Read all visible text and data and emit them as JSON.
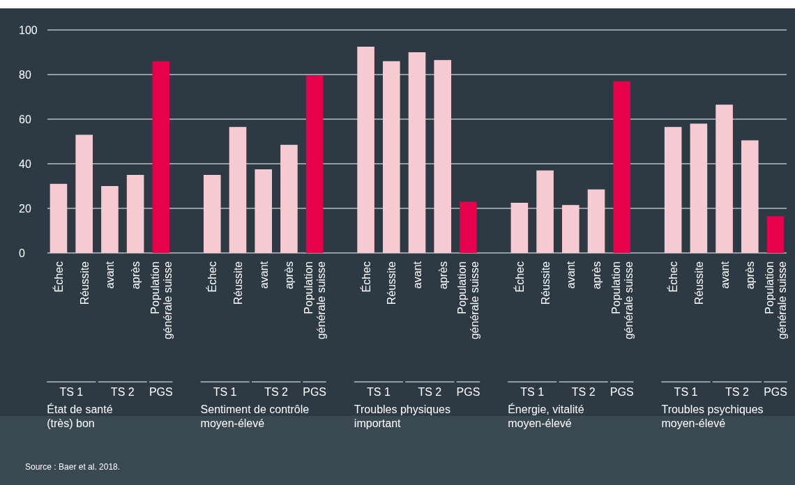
{
  "chart_data": {
    "type": "bar",
    "categories": [
      "Échec",
      "Réussite",
      "avant",
      "après",
      "Population\ngénérale suisse",
      null,
      "Échec",
      "Réussite",
      "avant",
      "après",
      "Population\ngénérale suisse",
      null,
      "Échec",
      "Réussite",
      "avant",
      "après",
      "Population\ngénérale suisse",
      null,
      "Échec",
      "Réussite",
      "avant",
      "après",
      "Population\ngénérale suisse",
      null,
      "Échec",
      "Réussite",
      "avant",
      "après",
      "Population\ngénérale suisse"
    ],
    "values": [
      31,
      53,
      30,
      35,
      86,
      null,
      35,
      56.5,
      37.5,
      48.5,
      79.5,
      null,
      92.5,
      86,
      90,
      86.5,
      23,
      null,
      22.5,
      37,
      21.5,
      28.5,
      77,
      null,
      56.5,
      58,
      66.5,
      50.5,
      16.5
    ],
    "colors": [
      "#f5cbd1",
      "#f5cbd1",
      "#f5cbd1",
      "#f5cbd1",
      "#e6004c",
      null,
      "#f5cbd1",
      "#f5cbd1",
      "#f5cbd1",
      "#f5cbd1",
      "#e6004c",
      null,
      "#f5cbd1",
      "#f5cbd1",
      "#f5cbd1",
      "#f5cbd1",
      "#e6004c",
      null,
      "#f5cbd1",
      "#f5cbd1",
      "#f5cbd1",
      "#f5cbd1",
      "#e6004c",
      null,
      "#f5cbd1",
      "#f5cbd1",
      "#f5cbd1",
      "#f5cbd1",
      "#e6004c"
    ],
    "ylim": [
      0,
      100
    ],
    "yticks": [
      0,
      20,
      40,
      60,
      80,
      100
    ],
    "grid": "y",
    "annotations": [
      "TS 1",
      "TS 2",
      "PGS",
      "État de santé\n(très) bon",
      "TS 1",
      "TS 2",
      "PGS",
      "Sentiment de contrôle\nmoyen-élevé",
      "TS 1",
      "TS 2",
      "PGS",
      "Troubles physiques\nimportant",
      "TS 1",
      "TS 2",
      "PGS",
      "Énergie, vitalité\nmoyen-élevé",
      "TS 1",
      "TS 2",
      "PGS",
      "Troubles psychiques\nmoyen-élevé",
      "Source : Baer et al. 2018."
    ]
  }
}
